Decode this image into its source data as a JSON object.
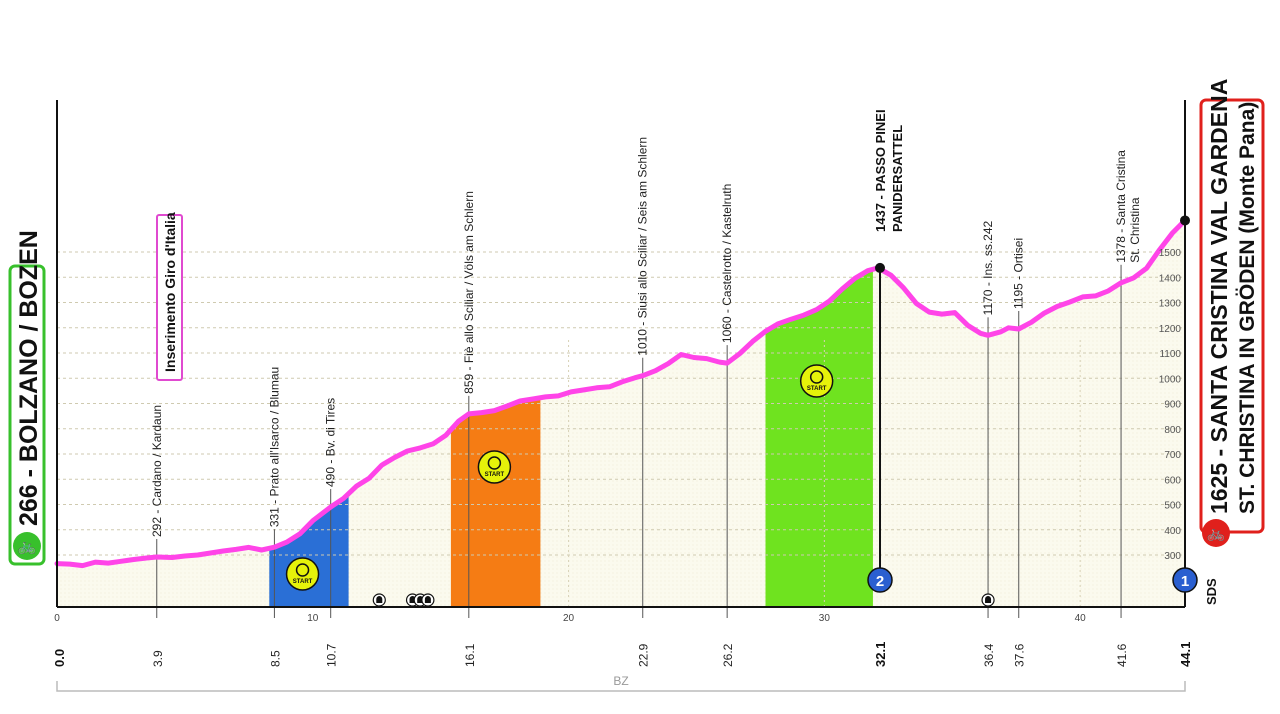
{
  "chart_data": {
    "type": "area",
    "xlabel": "",
    "ylabel": "",
    "xlim": [
      0,
      44.1
    ],
    "ylim": [
      0,
      1700
    ],
    "x_ticks": [
      0,
      10,
      20,
      30,
      40
    ],
    "y_ticks": [
      300,
      400,
      500,
      600,
      700,
      800,
      900,
      1000,
      1100,
      1200,
      1300,
      1400,
      1500
    ],
    "grid": true,
    "line_color": "#ff44e8",
    "start": {
      "km": "0.0",
      "label": "266 - BOLZANO / BOZEN",
      "elevation": 266
    },
    "finish": {
      "km": "44.1",
      "label_line1": "1625 - SANTA CRISTINA VAL GARDENA",
      "label_line2": "ST. CHRISTINA IN GRÖDEN (Monte Pana)",
      "elevation": 1625
    },
    "profile": [
      {
        "x": 0.0,
        "y": 266
      },
      {
        "x": 0.5,
        "y": 264
      },
      {
        "x": 1.0,
        "y": 258
      },
      {
        "x": 1.5,
        "y": 272
      },
      {
        "x": 2.0,
        "y": 268
      },
      {
        "x": 2.5,
        "y": 275
      },
      {
        "x": 3.0,
        "y": 282
      },
      {
        "x": 3.5,
        "y": 288
      },
      {
        "x": 3.9,
        "y": 292
      },
      {
        "x": 4.5,
        "y": 290
      },
      {
        "x": 5.0,
        "y": 296
      },
      {
        "x": 5.5,
        "y": 300
      },
      {
        "x": 6.0,
        "y": 308
      },
      {
        "x": 6.5,
        "y": 316
      },
      {
        "x": 7.0,
        "y": 322
      },
      {
        "x": 7.5,
        "y": 330
      },
      {
        "x": 8.0,
        "y": 320
      },
      {
        "x": 8.5,
        "y": 331
      },
      {
        "x": 9.0,
        "y": 352
      },
      {
        "x": 9.5,
        "y": 384
      },
      {
        "x": 10.0,
        "y": 436
      },
      {
        "x": 10.7,
        "y": 490
      },
      {
        "x": 11.2,
        "y": 524
      },
      {
        "x": 11.7,
        "y": 572
      },
      {
        "x": 12.2,
        "y": 604
      },
      {
        "x": 12.7,
        "y": 656
      },
      {
        "x": 13.2,
        "y": 686
      },
      {
        "x": 13.7,
        "y": 712
      },
      {
        "x": 14.2,
        "y": 724
      },
      {
        "x": 14.7,
        "y": 740
      },
      {
        "x": 15.2,
        "y": 774
      },
      {
        "x": 15.7,
        "y": 830
      },
      {
        "x": 16.1,
        "y": 859
      },
      {
        "x": 16.6,
        "y": 864
      },
      {
        "x": 17.1,
        "y": 872
      },
      {
        "x": 17.6,
        "y": 890
      },
      {
        "x": 18.1,
        "y": 910
      },
      {
        "x": 18.6,
        "y": 918
      },
      {
        "x": 19.1,
        "y": 926
      },
      {
        "x": 19.6,
        "y": 930
      },
      {
        "x": 20.1,
        "y": 946
      },
      {
        "x": 20.6,
        "y": 954
      },
      {
        "x": 21.1,
        "y": 962
      },
      {
        "x": 21.6,
        "y": 966
      },
      {
        "x": 22.1,
        "y": 986
      },
      {
        "x": 22.6,
        "y": 1002
      },
      {
        "x": 22.9,
        "y": 1010
      },
      {
        "x": 23.4,
        "y": 1030
      },
      {
        "x": 23.9,
        "y": 1058
      },
      {
        "x": 24.4,
        "y": 1094
      },
      {
        "x": 24.9,
        "y": 1082
      },
      {
        "x": 25.4,
        "y": 1078
      },
      {
        "x": 25.9,
        "y": 1064
      },
      {
        "x": 26.2,
        "y": 1060
      },
      {
        "x": 26.7,
        "y": 1098
      },
      {
        "x": 27.2,
        "y": 1146
      },
      {
        "x": 27.7,
        "y": 1186
      },
      {
        "x": 28.2,
        "y": 1216
      },
      {
        "x": 28.7,
        "y": 1234
      },
      {
        "x": 29.2,
        "y": 1250
      },
      {
        "x": 29.7,
        "y": 1272
      },
      {
        "x": 30.2,
        "y": 1306
      },
      {
        "x": 30.7,
        "y": 1354
      },
      {
        "x": 31.2,
        "y": 1396
      },
      {
        "x": 31.7,
        "y": 1426
      },
      {
        "x": 32.1,
        "y": 1437
      },
      {
        "x": 32.6,
        "y": 1408
      },
      {
        "x": 33.1,
        "y": 1358
      },
      {
        "x": 33.6,
        "y": 1296
      },
      {
        "x": 34.1,
        "y": 1262
      },
      {
        "x": 34.6,
        "y": 1254
      },
      {
        "x": 35.1,
        "y": 1260
      },
      {
        "x": 35.6,
        "y": 1210
      },
      {
        "x": 36.1,
        "y": 1178
      },
      {
        "x": 36.4,
        "y": 1170
      },
      {
        "x": 36.9,
        "y": 1184
      },
      {
        "x": 37.2,
        "y": 1200
      },
      {
        "x": 37.6,
        "y": 1195
      },
      {
        "x": 38.1,
        "y": 1222
      },
      {
        "x": 38.6,
        "y": 1258
      },
      {
        "x": 39.1,
        "y": 1284
      },
      {
        "x": 39.6,
        "y": 1302
      },
      {
        "x": 40.1,
        "y": 1322
      },
      {
        "x": 40.6,
        "y": 1326
      },
      {
        "x": 41.1,
        "y": 1346
      },
      {
        "x": 41.6,
        "y": 1378
      },
      {
        "x": 42.1,
        "y": 1398
      },
      {
        "x": 42.6,
        "y": 1436
      },
      {
        "x": 43.1,
        "y": 1508
      },
      {
        "x": 43.6,
        "y": 1574
      },
      {
        "x": 44.1,
        "y": 1625
      }
    ],
    "sections": [
      {
        "name": "blue",
        "from": 8.3,
        "to": 11.4,
        "color": "#2a6fd6",
        "icon_at": 9.6,
        "icon_label": "START",
        "icon_color": "#2a6fd6"
      },
      {
        "name": "orange",
        "from": 15.4,
        "to": 18.9,
        "color": "#f57c14",
        "icon_at": 17.1,
        "icon_label": "START",
        "icon_color": "#f57c14"
      },
      {
        "name": "green",
        "from": 27.7,
        "to": 31.9,
        "color": "#6fe31f",
        "icon_at": 29.7,
        "icon_label": "START",
        "icon_color": "#6fe31f"
      }
    ],
    "waypoints": [
      {
        "km": "3.9",
        "x": 3.9,
        "label": "292 - Cardano / Kardaun",
        "elev": 292
      },
      {
        "km": "8.5",
        "x": 8.5,
        "label": "331 - Prato all'Isarco / Blumau",
        "elev": 331
      },
      {
        "km": "10.7",
        "x": 10.7,
        "label": "490 - Bv. di Tires",
        "elev": 490
      },
      {
        "km": "16.1",
        "x": 16.1,
        "label": "859 - Fiè allo Sciliar / Völs am Schlern",
        "elev": 859
      },
      {
        "km": "22.9",
        "x": 22.9,
        "label": "1010 - Siusi allo Sciliar / Seis am Schlern",
        "elev": 1010
      },
      {
        "km": "26.2",
        "x": 26.2,
        "label": "1060 - Castelrotto / Kastelruth",
        "elev": 1060
      },
      {
        "km": "36.4",
        "x": 36.4,
        "label": "1170 - Ins. ss.242",
        "elev": 1170
      },
      {
        "km": "37.6",
        "x": 37.6,
        "label": "1195 - Ortisei",
        "elev": 1195
      },
      {
        "km": "41.6",
        "x": 41.6,
        "label_line1": "1378 - Santa Cristina",
        "label_line2": "St. Christina",
        "elev": 1378
      }
    ],
    "summit": {
      "km": "32.1",
      "x": 32.1,
      "label_line1": "1437 - PASSO PINEI",
      "label_line2": "PANIDERSATTEL",
      "elev": 1437,
      "category": "2"
    },
    "finish_category": "1",
    "sds": "SDS",
    "giro_entry": {
      "label": "Inserimento Giro d'Italia"
    },
    "tunnels": [
      12.6,
      13.9,
      14.2,
      14.5,
      36.4
    ],
    "province": "BZ"
  }
}
